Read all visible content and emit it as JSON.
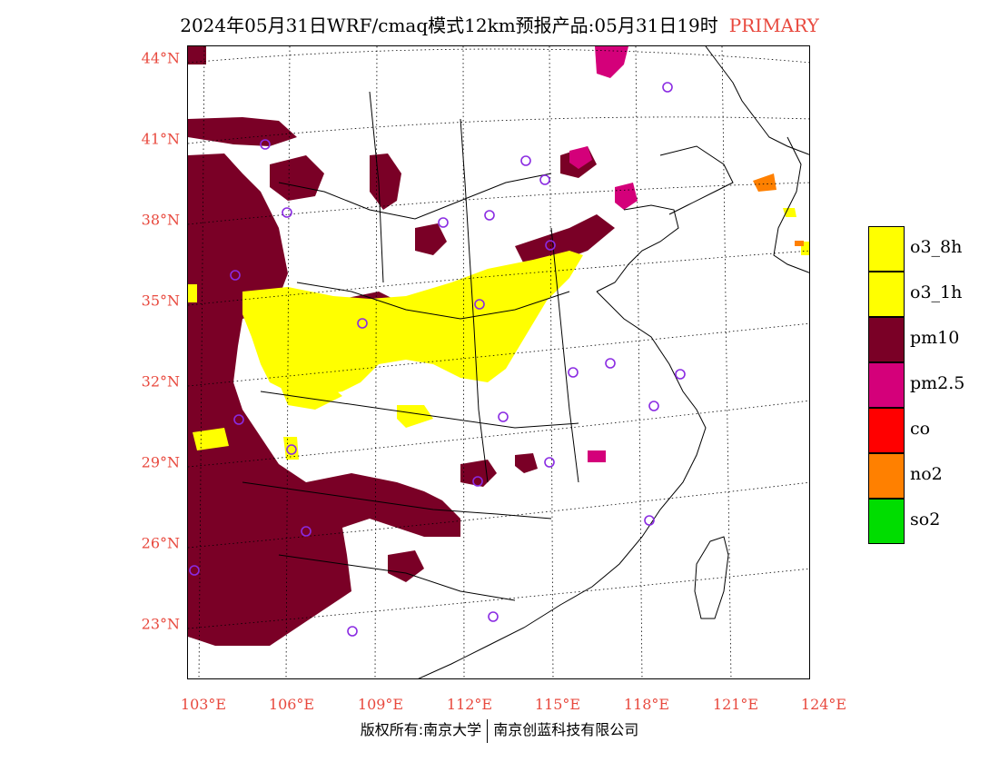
{
  "title": {
    "text": "2024年05月31日WRF/cmaq模式12km预报产品:05月31日19时",
    "tag": "PRIMARY"
  },
  "axes": {
    "lat_labels": [
      "44°N",
      "41°N",
      "38°N",
      "35°N",
      "32°N",
      "29°N",
      "26°N",
      "23°N"
    ],
    "lon_labels": [
      "103°E",
      "106°E",
      "109°E",
      "112°E",
      "115°E",
      "118°E",
      "121°E",
      "124°E"
    ]
  },
  "legend": [
    {
      "label": "o3_8h",
      "color": "#ffff00"
    },
    {
      "label": "o3_1h",
      "color": "#ffff00"
    },
    {
      "label": "pm10",
      "color": "#7a0026"
    },
    {
      "label": "pm2.5",
      "color": "#d4007a"
    },
    {
      "label": "co",
      "color": "#ff0000"
    },
    {
      "label": "no2",
      "color": "#ff8000"
    },
    {
      "label": "so2",
      "color": "#00dd00"
    }
  ],
  "copyright": {
    "left": "版权所有:南京大学",
    "right": "南京创蓝科技有限公司"
  },
  "colors": {
    "pm10": "#7a0026",
    "o3": "#ffff00",
    "pm25": "#d4007a",
    "no2": "#ff8000",
    "station": "#8a2be2",
    "label": "#e8493e"
  }
}
